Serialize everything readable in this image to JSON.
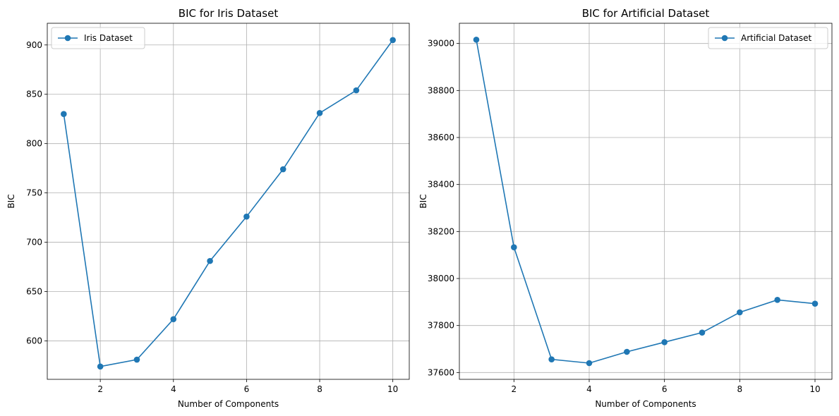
{
  "chart_data": [
    {
      "type": "line",
      "title": "BIC for Iris Dataset",
      "xlabel": "Number of Components",
      "ylabel": "BIC",
      "xlim": [
        0.55,
        10.45
      ],
      "ylim": [
        561,
        922
      ],
      "xticks": [
        2,
        4,
        6,
        8,
        10
      ],
      "yticks": [
        600,
        650,
        700,
        750,
        800,
        850,
        900
      ],
      "grid": true,
      "legend_position": "top-left",
      "series": [
        {
          "name": "Iris Dataset",
          "color": "#1f77b4",
          "marker": "circle",
          "x": [
            1,
            2,
            3,
            4,
            5,
            6,
            7,
            8,
            9,
            10
          ],
          "y": [
            830,
            574,
            581,
            622,
            681,
            726,
            774,
            831,
            854,
            905
          ]
        }
      ]
    },
    {
      "type": "line",
      "title": "BIC for Artificial Dataset",
      "xlabel": "Number of Components",
      "ylabel": "BIC",
      "xlim": [
        0.55,
        10.45
      ],
      "ylim": [
        37571,
        39086
      ],
      "xticks": [
        2,
        4,
        6,
        8,
        10
      ],
      "yticks": [
        37600,
        37800,
        38000,
        38200,
        38400,
        38600,
        38800,
        39000
      ],
      "grid": true,
      "legend_position": "top-right",
      "series": [
        {
          "name": "Artificial Dataset",
          "color": "#1f77b4",
          "marker": "circle",
          "x": [
            1,
            2,
            3,
            4,
            5,
            6,
            7,
            8,
            9,
            10
          ],
          "y": [
            39016,
            38133,
            37656,
            37640,
            37688,
            37729,
            37770,
            37856,
            37909,
            37893
          ]
        }
      ]
    }
  ]
}
